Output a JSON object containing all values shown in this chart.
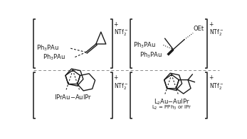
{
  "bg_color": "#ffffff",
  "line_color": "#1a1a1a",
  "fig_width": 3.47,
  "fig_height": 1.96,
  "dpi": 100,
  "fs_label": 6.0,
  "fs_charge": 5.5,
  "fs_ion": 5.5,
  "fs_small": 5.0
}
